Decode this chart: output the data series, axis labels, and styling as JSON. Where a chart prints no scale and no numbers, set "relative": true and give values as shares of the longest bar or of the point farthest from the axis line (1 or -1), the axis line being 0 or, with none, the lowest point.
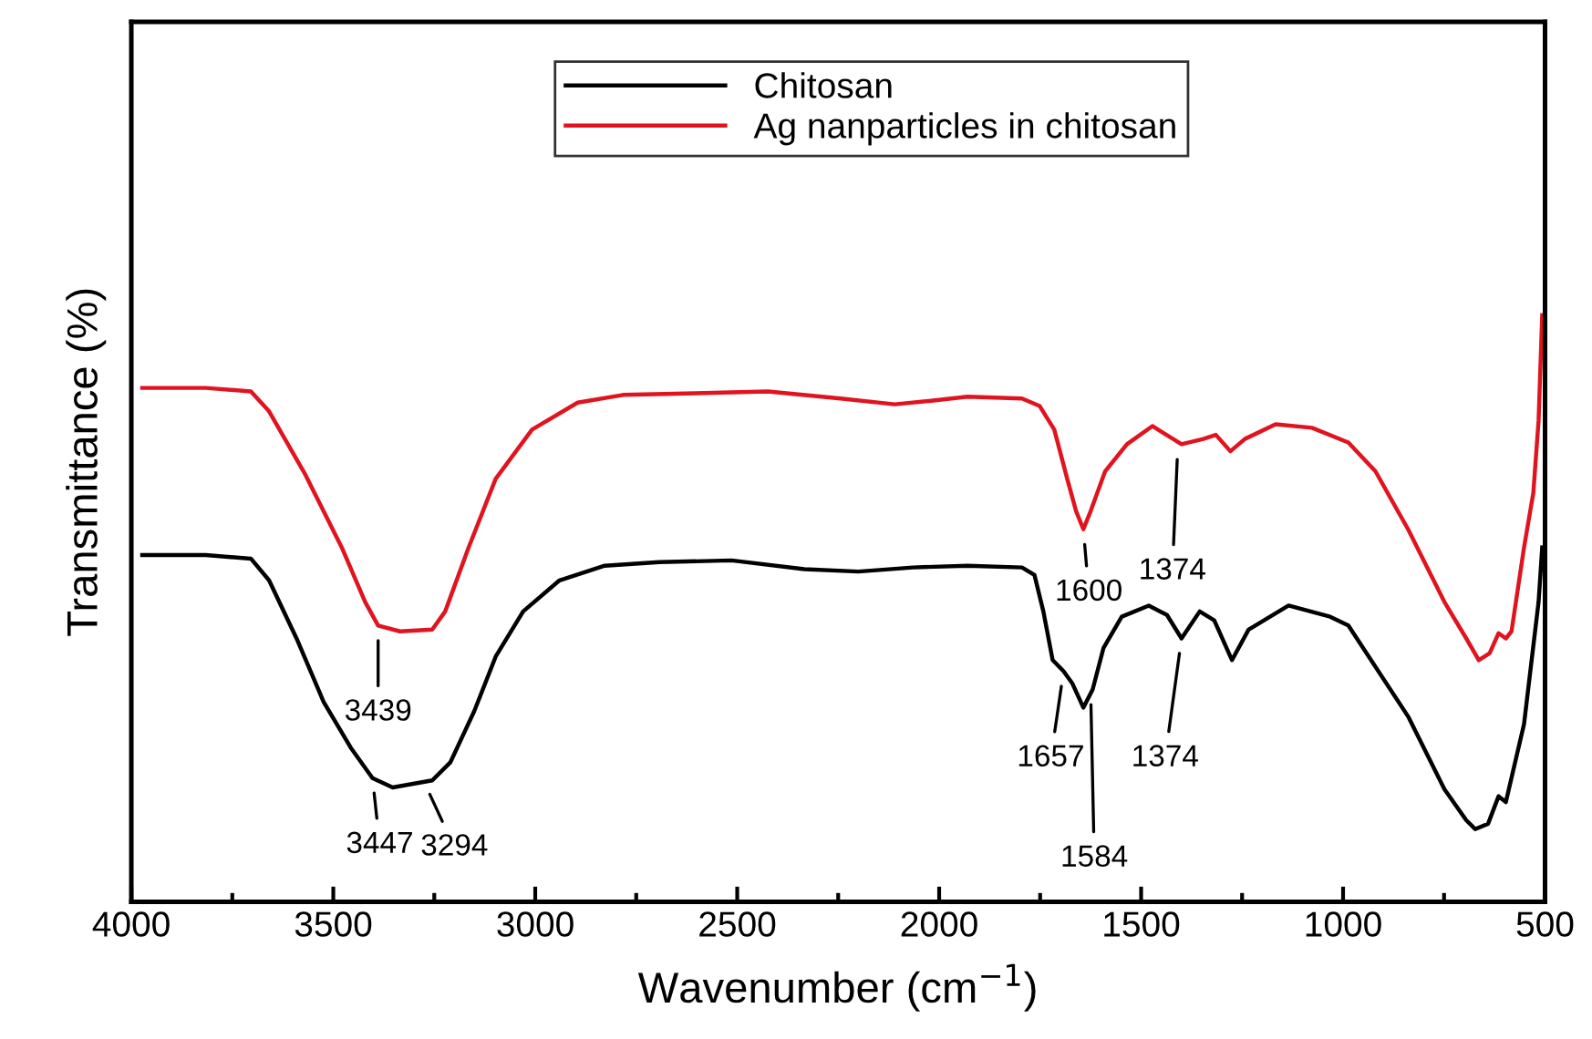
{
  "chart_data": {
    "type": "line",
    "xlabel": "Wavenumber (cm$^{−1}$)",
    "ylabel": "Transmittance (%)",
    "relative": true,
    "xlim": [
      4000,
      500
    ],
    "xticks": [
      4000,
      {
        "value": 3750,
        "label": null
      },
      3500,
      {
        "value": 3250,
        "label": null
      },
      3000,
      {
        "value": 2750,
        "label": null
      },
      2500,
      {
        "value": 2250,
        "label": null
      },
      2000,
      {
        "value": 1750,
        "label": null
      },
      1500,
      {
        "value": 1250,
        "label": null
      },
      1000,
      {
        "value": 750,
        "label": null
      },
      500
    ],
    "tick_labels": "x",
    "grid": false,
    "legend": "top right",
    "marker": "none",
    "line_style": "solid",
    "series": [
      {
        "name": "Chitosan",
        "color": "#000000",
        "x": [
          3973,
          3816,
          3704,
          3659,
          3591,
          3524,
          3457,
          3403,
          3353,
          3255,
          3210,
          3151,
          3098,
          3030,
          2940,
          2828,
          2693,
          2514,
          2334,
          2200,
          2065,
          1930,
          1795,
          1764,
          1742,
          1719,
          1692,
          1670,
          1643,
          1620,
          1593,
          1548,
          1481,
          1436,
          1400,
          1355,
          1319,
          1275,
          1234,
          1135,
          1032,
          987,
          839,
          749,
          695,
          673,
          641,
          615,
          597,
          552,
          516,
          507
        ],
        "values": [
          0.591,
          0.591,
          0.585,
          0.548,
          0.449,
          0.341,
          0.263,
          0.211,
          0.195,
          0.207,
          0.238,
          0.325,
          0.418,
          0.495,
          0.548,
          0.573,
          0.579,
          0.582,
          0.567,
          0.563,
          0.57,
          0.573,
          0.57,
          0.557,
          0.495,
          0.412,
          0.393,
          0.372,
          0.331,
          0.362,
          0.433,
          0.486,
          0.505,
          0.489,
          0.449,
          0.495,
          0.48,
          0.412,
          0.464,
          0.505,
          0.486,
          0.471,
          0.316,
          0.192,
          0.139,
          0.124,
          0.133,
          0.18,
          0.17,
          0.303,
          0.511,
          0.604
        ]
      },
      {
        "name": "Ag nanparticles in chitosan",
        "color": "#e0141e",
        "x": [
          3973,
          3816,
          3704,
          3659,
          3569,
          3479,
          3421,
          3389,
          3335,
          3255,
          3223,
          3165,
          3098,
          3008,
          2895,
          2783,
          2604,
          2424,
          2244,
          2110,
          2020,
          1930,
          1795,
          1751,
          1715,
          1683,
          1661,
          1643,
          1625,
          1589,
          1535,
          1472,
          1400,
          1346,
          1315,
          1279,
          1243,
          1167,
          1077,
          987,
          920,
          839,
          749,
          695,
          664,
          637,
          615,
          597,
          583,
          552,
          529,
          516,
          507
        ],
        "values": [
          0.876,
          0.876,
          0.87,
          0.836,
          0.728,
          0.604,
          0.511,
          0.471,
          0.461,
          0.464,
          0.495,
          0.604,
          0.721,
          0.805,
          0.851,
          0.864,
          0.867,
          0.87,
          0.858,
          0.848,
          0.854,
          0.861,
          0.858,
          0.845,
          0.805,
          0.721,
          0.666,
          0.635,
          0.666,
          0.734,
          0.78,
          0.811,
          0.78,
          0.789,
          0.796,
          0.768,
          0.789,
          0.814,
          0.808,
          0.783,
          0.734,
          0.635,
          0.511,
          0.449,
          0.412,
          0.424,
          0.458,
          0.449,
          0.461,
          0.604,
          0.697,
          0.82,
          1.0
        ]
      }
    ],
    "annotations": [
      {
        "text": "3439",
        "x": 3389,
        "y": 0.471
      },
      {
        "text": "3447",
        "x": 3403,
        "y": 0.211
      },
      {
        "text": "3294",
        "x": 3277,
        "y": 0.207
      },
      {
        "text": "1600",
        "x": 1643,
        "y": 0.635
      },
      {
        "text": "1374",
        "x": 1409,
        "y": 0.78
      },
      {
        "text": "1657",
        "x": 1692,
        "y": 0.393
      },
      {
        "text": "1584",
        "x": 1625,
        "y": 0.362
      },
      {
        "text": "1374",
        "x": 1400,
        "y": 0.449
      }
    ]
  }
}
